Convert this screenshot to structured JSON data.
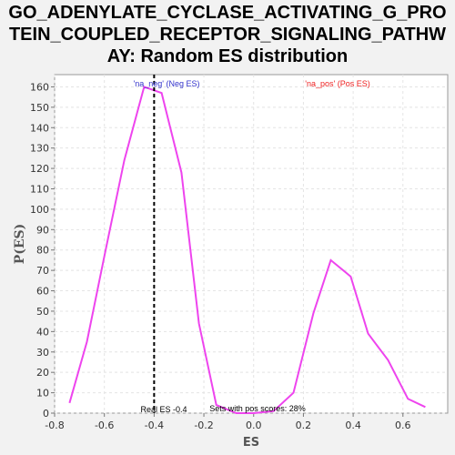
{
  "chart_data": {
    "type": "line",
    "title_lines": [
      "GO_ADENYLATE_CYCLASE_ACTIVATING_G_PRO",
      "TEIN_COUPLED_RECEPTOR_SIGNALING_PATHW",
      "AY: Random ES distribution"
    ],
    "xlabel": "ES",
    "ylabel": "P(ES)",
    "xlim": [
      -0.8,
      0.78
    ],
    "ylim": [
      0,
      166
    ],
    "xticks": [
      -0.8,
      -0.6,
      -0.4,
      -0.2,
      0.0,
      0.2,
      0.4,
      0.6
    ],
    "xtick_labels": [
      "-0.8",
      "-0.6",
      "-0.4",
      "-0.2",
      "0.0",
      "0.2",
      "0.4",
      "0.6"
    ],
    "yticks": [
      0,
      10,
      20,
      30,
      40,
      50,
      60,
      70,
      80,
      90,
      100,
      110,
      120,
      130,
      140,
      150,
      160
    ],
    "grid": true,
    "series": [
      {
        "color": "#ee44ee",
        "x": [
          -0.74,
          -0.67,
          -0.6,
          -0.52,
          -0.44,
          -0.37,
          -0.29,
          -0.22,
          -0.15,
          -0.07,
          0.0,
          0.08,
          0.16,
          0.24,
          0.31,
          0.39,
          0.46,
          0.54,
          0.62,
          0.69
        ],
        "y": [
          5,
          35,
          77,
          124,
          160,
          157,
          118,
          44,
          4,
          0,
          0,
          1,
          10,
          49,
          75,
          67,
          39,
          26,
          7,
          3
        ]
      }
    ],
    "real_es": {
      "x": -0.4,
      "color": "#000000"
    },
    "annotations": {
      "neg": {
        "text": "'na_neg' (Neg ES)",
        "color": "#3333cc"
      },
      "pos": {
        "text": "'na_pos' (Pos ES)",
        "color": "#ee2222"
      },
      "real_es": {
        "text": "Real ES -0.4"
      },
      "pos_sets": {
        "text": "Sets with pos scores: 28%"
      }
    }
  }
}
